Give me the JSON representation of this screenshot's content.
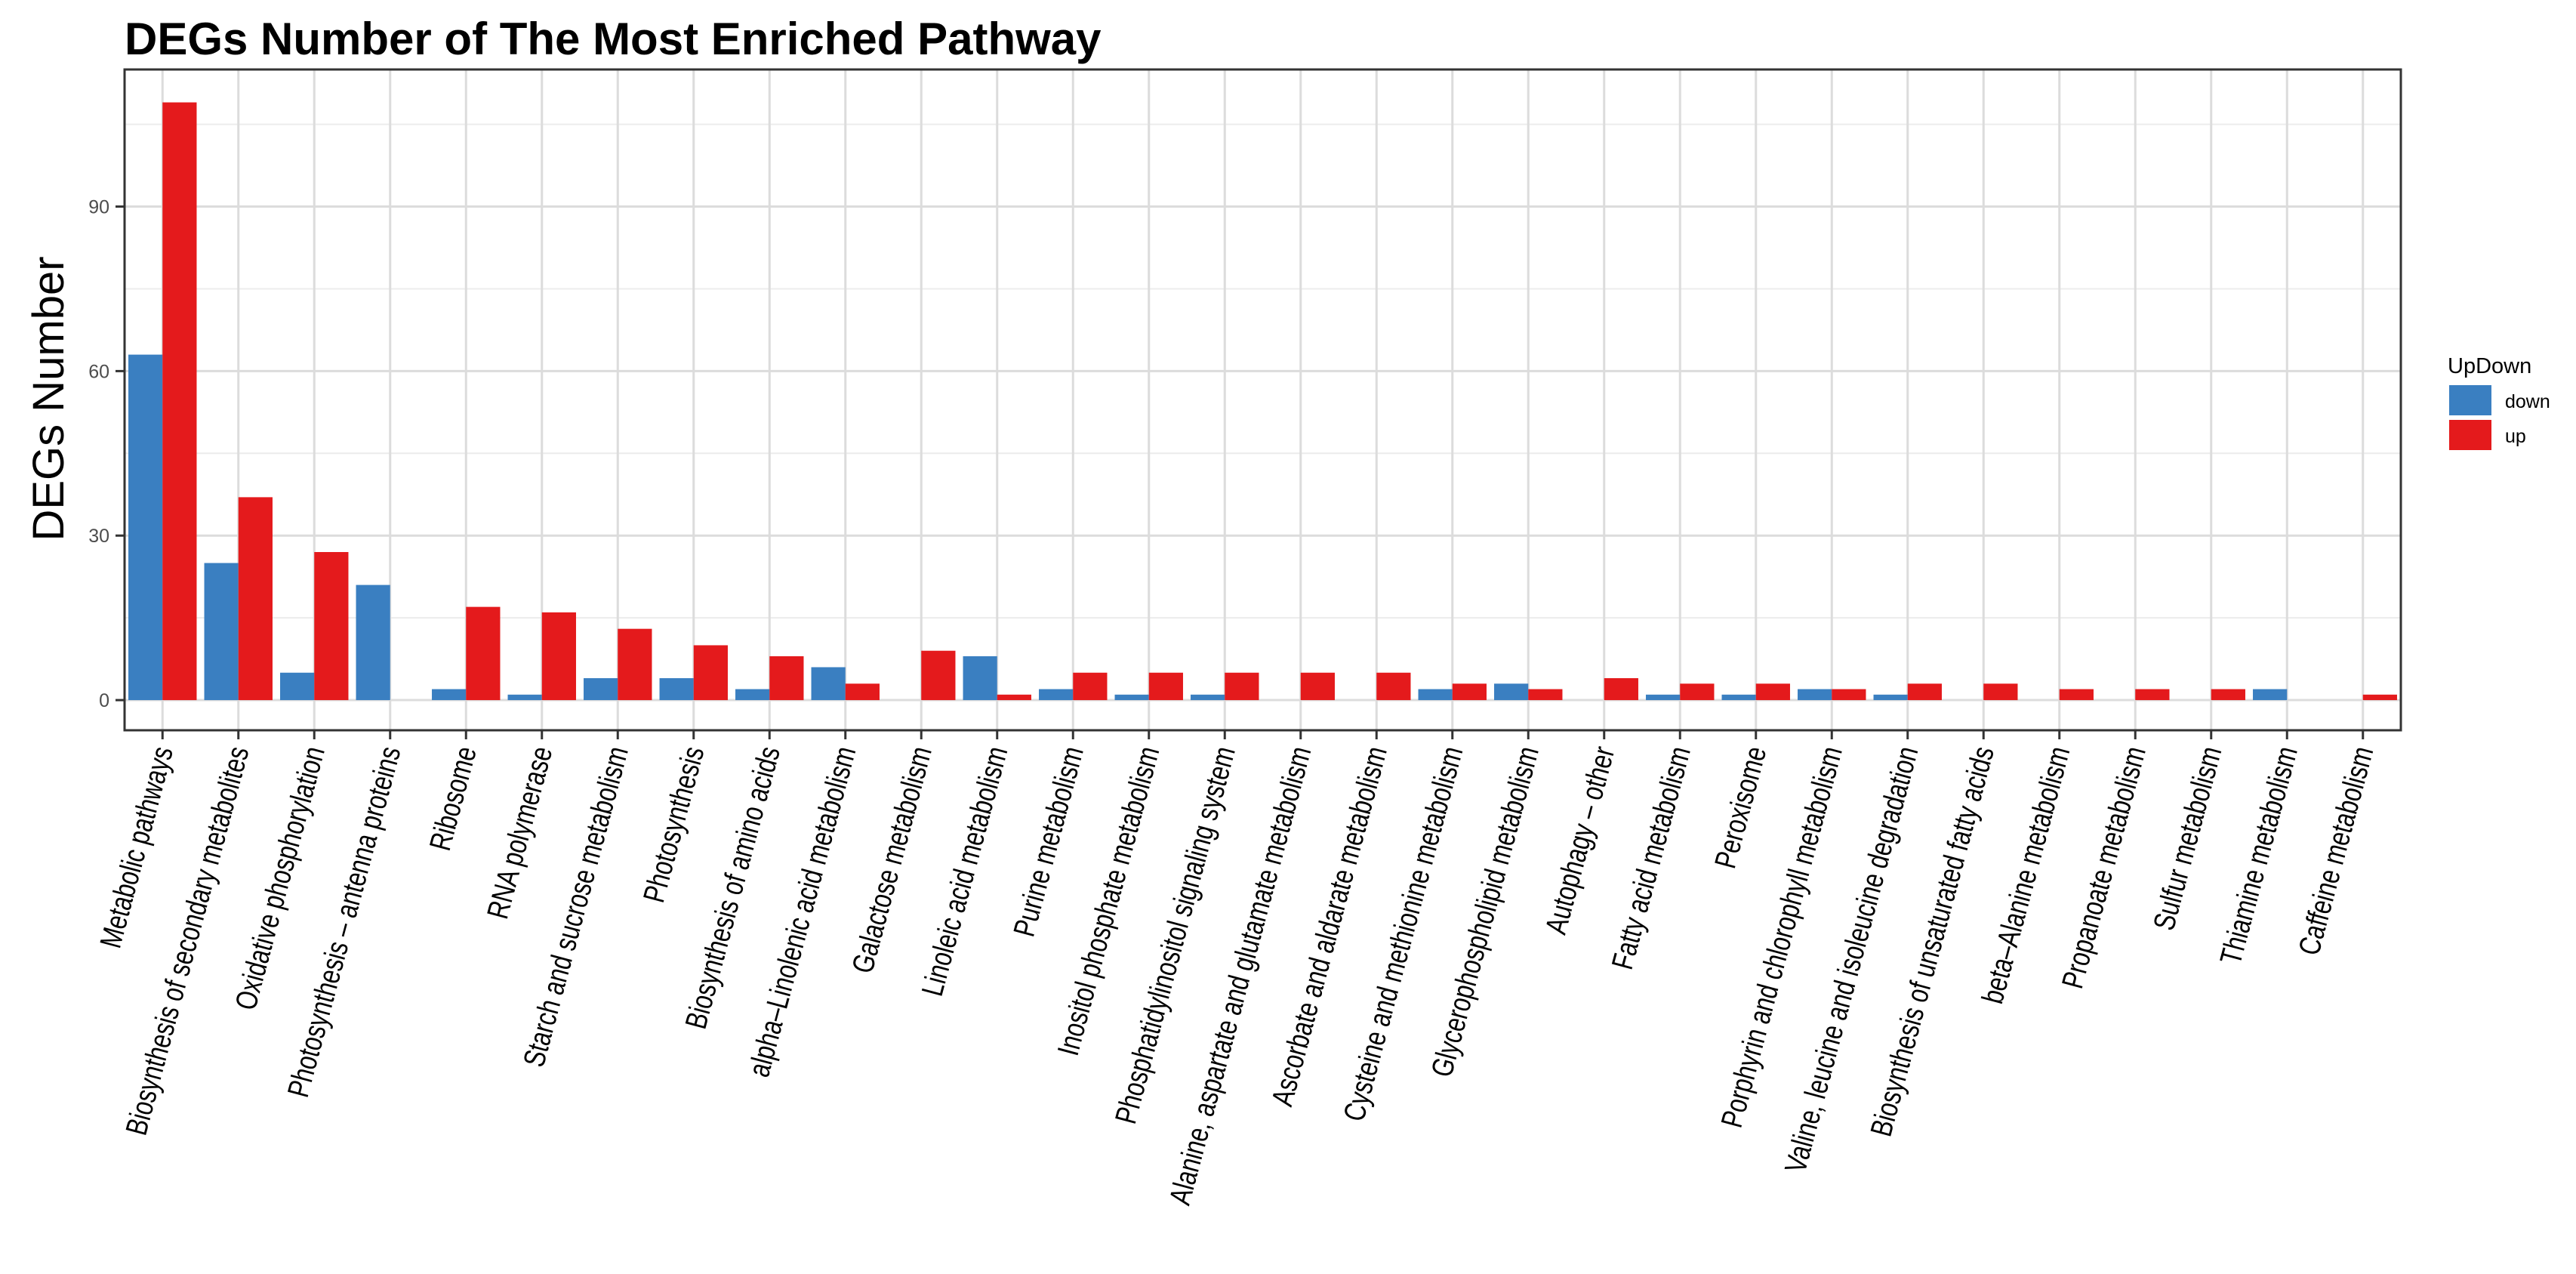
{
  "chart_data": {
    "type": "bar",
    "title": "DEGs Number of The Most Enriched Pathway",
    "xlabel": "",
    "ylabel": "DEGs Number",
    "ylim": [
      -5.5,
      115
    ],
    "yticks": [
      0,
      30,
      60,
      90
    ],
    "grid": true,
    "legend": {
      "title": "UpDown",
      "placement": "right"
    },
    "categories": [
      "Metabolic pathways",
      "Biosynthesis of secondary metabolites",
      "Oxidative phosphorylation",
      "Photosynthesis – antenna proteins",
      "Ribosome",
      "RNA polymerase",
      "Starch and sucrose metabolism",
      "Photosynthesis",
      "Biosynthesis of amino acids",
      "alpha–Linolenic acid metabolism",
      "Galactose metabolism",
      "Linoleic acid metabolism",
      "Purine metabolism",
      "Inositol phosphate metabolism",
      "Phosphatidylinositol signaling system",
      "Alanine, aspartate and glutamate metabolism",
      "Ascorbate and aldarate metabolism",
      "Cysteine and methionine metabolism",
      "Glycerophospholipid metabolism",
      "Autophagy – other",
      "Fatty acid metabolism",
      "Peroxisome",
      "Porphyrin and chlorophyll metabolism",
      "Valine, leucine and isoleucine degradation",
      "Biosynthesis of unsaturated fatty acids",
      "beta–Alanine metabolism",
      "Propanoate metabolism",
      "Sulfur metabolism",
      "Thiamine metabolism",
      "Caffeine metabolism"
    ],
    "series": [
      {
        "name": "down",
        "color": "#3A7FC1",
        "values": [
          63,
          25,
          5,
          21,
          2,
          1,
          4,
          4,
          2,
          6,
          0,
          8,
          2,
          1,
          1,
          0,
          0,
          2,
          3,
          0,
          1,
          1,
          2,
          1,
          0,
          0,
          0,
          0,
          2,
          0
        ]
      },
      {
        "name": "up",
        "color": "#E41A1C",
        "values": [
          109,
          37,
          27,
          0,
          17,
          16,
          13,
          10,
          8,
          3,
          9,
          1,
          5,
          5,
          5,
          5,
          5,
          3,
          2,
          4,
          3,
          3,
          2,
          3,
          3,
          2,
          2,
          2,
          0,
          1
        ]
      }
    ]
  }
}
